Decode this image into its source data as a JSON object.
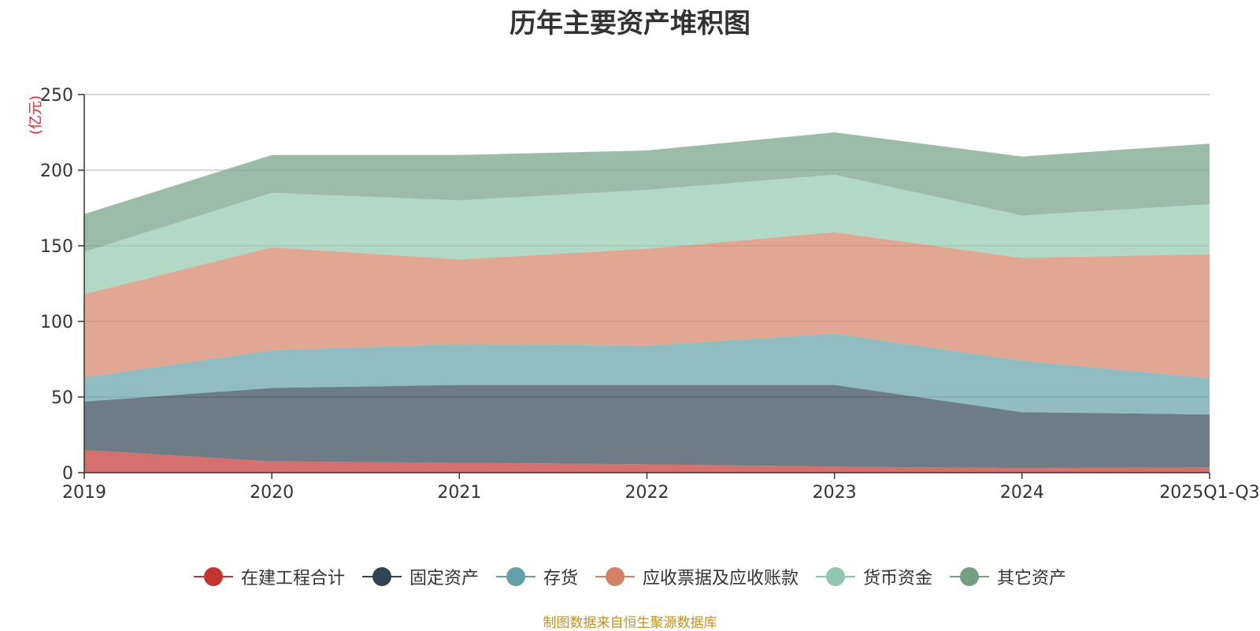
{
  "chart_data": {
    "type": "area",
    "stacked": true,
    "title": "历年主要资产堆积图",
    "ylabel": "(亿元)",
    "ylim": [
      0,
      250
    ],
    "yticks": [
      0,
      50,
      100,
      150,
      200,
      250
    ],
    "categories": [
      "2019",
      "2020",
      "2021",
      "2022",
      "2023",
      "2024",
      "2025Q1-Q3"
    ],
    "grid": true,
    "legend_position": "bottom",
    "series": [
      {
        "name": "在建工程合计",
        "color": "#c23531",
        "values": [
          15,
          7.5,
          6.5,
          5.5,
          4,
          3,
          3.5
        ]
      },
      {
        "name": "固定资产",
        "color": "#2f4554",
        "values": [
          32,
          48.5,
          51.5,
          52.5,
          54,
          37,
          35
        ]
      },
      {
        "name": "存货",
        "color": "#61a0a8",
        "values": [
          16,
          25,
          27,
          26,
          34,
          34,
          24
        ]
      },
      {
        "name": "应收票据及应收账款",
        "color": "#d48265",
        "values": [
          55,
          68,
          56,
          64,
          67,
          68,
          82
        ]
      },
      {
        "name": "货币资金",
        "color": "#91c7ae",
        "values": [
          28,
          36,
          39,
          39,
          38,
          28,
          33
        ]
      },
      {
        "name": "其它资产",
        "color": "#749f83",
        "values": [
          25,
          25,
          30,
          26,
          28,
          39,
          40
        ]
      }
    ]
  },
  "source_note": "制图数据来自恒生聚源数据库"
}
